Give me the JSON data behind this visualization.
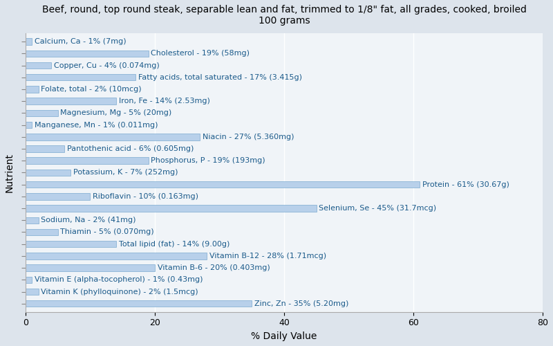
{
  "title": "Beef, round, top round steak, separable lean and fat, trimmed to 1/8\" fat, all grades, cooked, broiled\n100 grams",
  "xlabel": "% Daily Value",
  "ylabel": "Nutrient",
  "xlim": [
    0,
    80
  ],
  "plot_bg_color": "#f0f4f8",
  "fig_bg_color": "#dde4ec",
  "bar_color": "#b8d0ea",
  "bar_edge_color": "#7aaad0",
  "text_color": "#1a5a8a",
  "nutrients": [
    {
      "label": "Calcium, Ca - 1% (7mg)",
      "value": 1
    },
    {
      "label": "Cholesterol - 19% (58mg)",
      "value": 19
    },
    {
      "label": "Copper, Cu - 4% (0.074mg)",
      "value": 4
    },
    {
      "label": "Fatty acids, total saturated - 17% (3.415g)",
      "value": 17
    },
    {
      "label": "Folate, total - 2% (10mcg)",
      "value": 2
    },
    {
      "label": "Iron, Fe - 14% (2.53mg)",
      "value": 14
    },
    {
      "label": "Magnesium, Mg - 5% (20mg)",
      "value": 5
    },
    {
      "label": "Manganese, Mn - 1% (0.011mg)",
      "value": 1
    },
    {
      "label": "Niacin - 27% (5.360mg)",
      "value": 27
    },
    {
      "label": "Pantothenic acid - 6% (0.605mg)",
      "value": 6
    },
    {
      "label": "Phosphorus, P - 19% (193mg)",
      "value": 19
    },
    {
      "label": "Potassium, K - 7% (252mg)",
      "value": 7
    },
    {
      "label": "Protein - 61% (30.67g)",
      "value": 61
    },
    {
      "label": "Riboflavin - 10% (0.163mg)",
      "value": 10
    },
    {
      "label": "Selenium, Se - 45% (31.7mcg)",
      "value": 45
    },
    {
      "label": "Sodium, Na - 2% (41mg)",
      "value": 2
    },
    {
      "label": "Thiamin - 5% (0.070mg)",
      "value": 5
    },
    {
      "label": "Total lipid (fat) - 14% (9.00g)",
      "value": 14
    },
    {
      "label": "Vitamin B-12 - 28% (1.71mcg)",
      "value": 28
    },
    {
      "label": "Vitamin B-6 - 20% (0.403mg)",
      "value": 20
    },
    {
      "label": "Vitamin E (alpha-tocopherol) - 1% (0.43mg)",
      "value": 1
    },
    {
      "label": "Vitamin K (phylloquinone) - 2% (1.5mcg)",
      "value": 2
    },
    {
      "label": "Zinc, Zn - 35% (5.20mg)",
      "value": 35
    }
  ],
  "title_fontsize": 10,
  "label_fontsize": 8,
  "tick_fontsize": 9,
  "axis_label_fontsize": 10
}
